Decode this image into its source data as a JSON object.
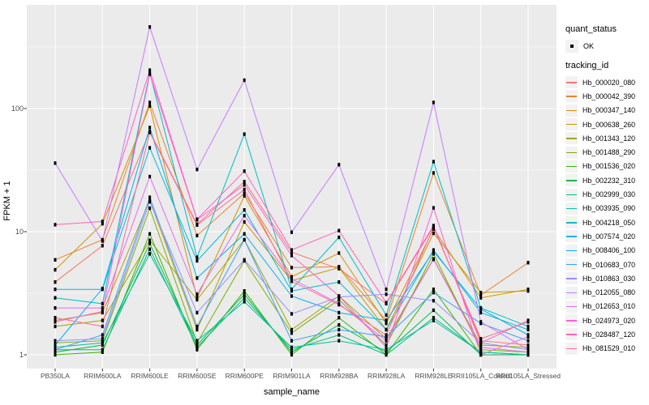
{
  "figure": {
    "background": "#FFFFFF",
    "panel_background": "#EBEBEB",
    "grid_color": "#FFFFFF",
    "tick_mark_color": "#333333",
    "tick_label_color": "#4D4D4D"
  },
  "axes": {
    "x_title": "sample_name",
    "y_title": "FPKM + 1",
    "y_tick_labels": [
      "1",
      "10",
      "100"
    ]
  },
  "legend": {
    "quant_status_title": "quant_status",
    "quant_status_items": [
      {
        "label": "OK",
        "marker": "black-point"
      }
    ],
    "tracking_id_title": "tracking_id"
  },
  "chart_data": {
    "type": "line",
    "title": "",
    "xlabel": "sample_name",
    "ylabel": "FPKM + 1",
    "y_scale": "log10",
    "ylim": [
      1,
      500
    ],
    "y_ticks": [
      1,
      10,
      100
    ],
    "grid": true,
    "legend_position": "right",
    "point_marker": {
      "shape": "small-black-rect",
      "legend_label": "OK"
    },
    "categories": [
      "PB350LA",
      "RRIM600LA",
      "RRIM600LE",
      "RRIM600SE",
      "RRIM600PE",
      "RRIM901LA",
      "RRIM928BA",
      "RRIM928LA",
      "RRIM928LE",
      "RRII105LA_Control",
      "RRII105LA_Stressed"
    ],
    "series": [
      {
        "name": "Hb_000020_080",
        "color": "#F8766D",
        "values": [
          3.9,
          7.7,
          65,
          11.5,
          25.5,
          6.8,
          5.0,
          2.6,
          11.0,
          1.3,
          1.2
        ]
      },
      {
        "name": "Hb_000042_390",
        "color": "#EA8331",
        "values": [
          5.9,
          8.6,
          112,
          9.3,
          20.5,
          5.1,
          5.2,
          1.9,
          30.0,
          3.05,
          5.6
        ]
      },
      {
        "name": "Hb_000347_140",
        "color": "#D89000",
        "values": [
          4.9,
          11.6,
          105,
          2.9,
          19.5,
          4.3,
          6.7,
          1.8,
          10.5,
          2.9,
          3.4
        ]
      },
      {
        "name": "Hb_000638_260",
        "color": "#C09B00",
        "values": [
          1.9,
          2.2,
          18.0,
          1.6,
          12.0,
          4.0,
          5.1,
          1.6,
          9.7,
          3.2,
          3.3
        ]
      },
      {
        "name": "Hb_001343_120",
        "color": "#A3A500",
        "values": [
          1.7,
          1.9,
          8.5,
          2.8,
          8.6,
          1.6,
          3.0,
          1.35,
          6.0,
          1.2,
          1.15
        ]
      },
      {
        "name": "Hb_001488_290",
        "color": "#7CAE00",
        "values": [
          1.25,
          1.3,
          15.5,
          1.25,
          5.8,
          1.5,
          2.8,
          1.2,
          6.6,
          1.1,
          1.05
        ]
      },
      {
        "name": "Hb_001536_020",
        "color": "#39B600",
        "values": [
          1.0,
          1.05,
          9.6,
          1.1,
          3.3,
          1.0,
          2.0,
          1.0,
          3.4,
          1.0,
          1.0
        ]
      },
      {
        "name": "Hb_002232_310",
        "color": "#00BB4E",
        "values": [
          1.05,
          1.2,
          8.0,
          1.2,
          3.1,
          1.05,
          1.75,
          1.05,
          2.3,
          1.0,
          1.0
        ]
      },
      {
        "name": "Hb_002999_030",
        "color": "#00BF7D",
        "values": [
          1.1,
          1.1,
          7.2,
          1.15,
          2.9,
          1.1,
          1.45,
          1.0,
          2.0,
          1.05,
          1.0
        ]
      },
      {
        "name": "Hb_003935_090",
        "color": "#00C1A3",
        "values": [
          1.15,
          1.25,
          6.6,
          1.3,
          2.7,
          1.15,
          1.3,
          1.1,
          1.9,
          1.05,
          1.0
        ]
      },
      {
        "name": "Hb_004218_050",
        "color": "#00BFC4",
        "values": [
          2.9,
          2.6,
          195,
          6.2,
          62.0,
          3.4,
          9.0,
          2.1,
          37.0,
          2.4,
          1.7
        ]
      },
      {
        "name": "Hb_007574_020",
        "color": "#00BAE0",
        "values": [
          3.4,
          3.4,
          48.0,
          5.8,
          15.0,
          3.3,
          3.9,
          1.6,
          7.1,
          2.2,
          1.6
        ]
      },
      {
        "name": "Hb_008406_100",
        "color": "#00B0F6",
        "values": [
          1.2,
          3.45,
          70.0,
          4.2,
          9.6,
          3.0,
          2.2,
          1.9,
          6.9,
          2.35,
          1.45
        ]
      },
      {
        "name": "Hb_010683_070",
        "color": "#35A2FF",
        "values": [
          1.1,
          1.45,
          19.0,
          1.7,
          8.6,
          1.3,
          1.6,
          1.4,
          3.2,
          1.8,
          1.3
        ]
      },
      {
        "name": "Hb_010863_030",
        "color": "#9590FF",
        "values": [
          1.3,
          1.35,
          17.5,
          2.2,
          5.9,
          2.15,
          2.95,
          3.1,
          2.75,
          1.25,
          1.1
        ]
      },
      {
        "name": "Hb_012055_080",
        "color": "#C77CFF",
        "values": [
          36.0,
          8.4,
          460.0,
          32.0,
          170.0,
          9.9,
          35.0,
          3.4,
          112.0,
          1.85,
          1.1
        ]
      },
      {
        "name": "Hb_012653_010",
        "color": "#E76BF3",
        "values": [
          2.4,
          2.4,
          28.0,
          3.1,
          13.5,
          4.15,
          2.6,
          1.3,
          5.95,
          1.15,
          1.05
        ]
      },
      {
        "name": "Hb_024973_020",
        "color": "#FA62DB",
        "values": [
          1.85,
          2.25,
          190.0,
          12.5,
          24.0,
          6.4,
          3.0,
          1.15,
          15.6,
          1.0,
          1.4
        ]
      },
      {
        "name": "Hb_028487_120",
        "color": "#FF62BC",
        "values": [
          11.4,
          12.1,
          205.0,
          12.6,
          31.0,
          7.1,
          10.2,
          2.65,
          11.2,
          1.25,
          1.9
        ]
      },
      {
        "name": "Hb_081529_010",
        "color": "#FF6A98",
        "values": [
          2.0,
          1.7,
          64.0,
          11.3,
          22.0,
          3.95,
          2.55,
          1.45,
          10.8,
          1.35,
          1.85
        ]
      }
    ]
  }
}
